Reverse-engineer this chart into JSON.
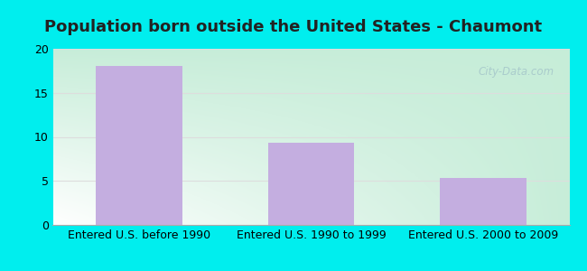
{
  "title": "Population born outside the United States - Chaumont",
  "categories": [
    "Entered U.S. before 1990",
    "Entered U.S. 1990 to 1999",
    "Entered U.S. 2000 to 2009"
  ],
  "values": [
    18,
    9.3,
    5.3
  ],
  "bar_color": "#C4AEE0",
  "ylim": [
    0,
    20
  ],
  "yticks": [
    0,
    5,
    10,
    15,
    20
  ],
  "bg_outer_color": "#00EEEE",
  "bg_grad_top_left": "#C8EED8",
  "bg_grad_bottom_right": "#F0F8FF",
  "grid_color": "#DDDDDD",
  "title_fontsize": 13,
  "tick_fontsize": 9,
  "watermark_text": "City-Data.com",
  "watermark_color": "#AACCCC",
  "title_color": "#222222"
}
